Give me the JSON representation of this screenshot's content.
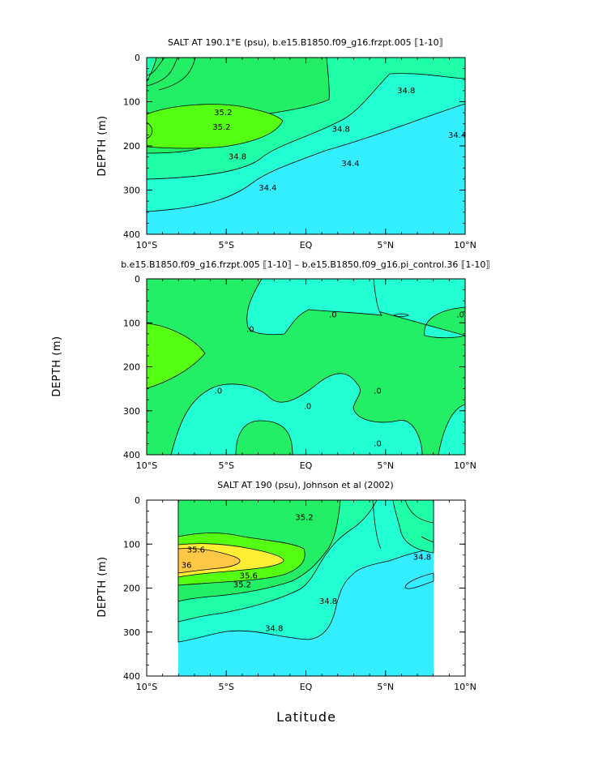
{
  "figure": {
    "xlabel": "Latitude"
  },
  "colors": {
    "cyan": "#33eeff",
    "aqua": "#22ffd2",
    "teal": "#1fffa8",
    "green": "#22ee66",
    "lime": "#55ff11",
    "yellow": "#ffee33",
    "orange": "#ffc844"
  },
  "chart_data": [
    {
      "type": "contour",
      "title": "SALT AT 190.1°E (psu), b.e15.B1850.f09_g16.frzpt.005 ⟦1-10⟧",
      "ylabel": "DEPTH (m)",
      "xlim": [
        -10,
        10
      ],
      "ylim": [
        400,
        0
      ],
      "x_ticks": [
        "10°S",
        "5°S",
        "EQ",
        "5°N",
        "10°N"
      ],
      "y_ticks": [
        "0",
        "100",
        "200",
        "300",
        "400"
      ],
      "contour_labels": [
        {
          "text": "35.2",
          "lat": -5.2,
          "depth": 125
        },
        {
          "text": "35.2",
          "lat": -5.3,
          "depth": 158
        },
        {
          "text": "34.8",
          "lat": -4.3,
          "depth": 225
        },
        {
          "text": "34.4",
          "lat": -2.4,
          "depth": 295
        },
        {
          "text": "34.8",
          "lat": 2.2,
          "depth": 162
        },
        {
          "text": "34.4",
          "lat": 2.8,
          "depth": 240
        },
        {
          "text": "34.8",
          "lat": 6.3,
          "depth": 75
        },
        {
          "text": "34.4",
          "lat": 9.5,
          "depth": 176
        }
      ]
    },
    {
      "type": "contour",
      "title": "b.e15.B1850.f09_g16.frzpt.005 ⟦1-10⟧ – b.e15.B1850.f09_g16.pi_control.36 ⟦1-10⟧",
      "ylabel": "DEPTH (m)",
      "xlim": [
        -10,
        10
      ],
      "ylim": [
        400,
        0
      ],
      "x_ticks": [
        "10°S",
        "5°S",
        "EQ",
        "5°N",
        "10°N"
      ],
      "y_ticks": [
        "0",
        "100",
        "200",
        "300",
        "400"
      ],
      "contour_labels": [
        {
          "text": ".0",
          "lat": -3.5,
          "depth": 115
        },
        {
          "text": ".0",
          "lat": 1.7,
          "depth": 82
        },
        {
          "text": ".0",
          "lat": 9.7,
          "depth": 82
        },
        {
          "text": ".0",
          "lat": -5.5,
          "depth": 255
        },
        {
          "text": ".0",
          "lat": 0.1,
          "depth": 290
        },
        {
          "text": ".0",
          "lat": 4.5,
          "depth": 255
        },
        {
          "text": ".0",
          "lat": 4.5,
          "depth": 375
        }
      ]
    },
    {
      "type": "contour",
      "title": "SALT AT 190 (psu), Johnson et al (2002)",
      "ylabel": "DEPTH (m)",
      "xlim": [
        -10,
        10
      ],
      "ylim": [
        400,
        0
      ],
      "x_ticks": [
        "10°S",
        "5°S",
        "EQ",
        "5°N",
        "10°N"
      ],
      "y_ticks": [
        "0",
        "100",
        "200",
        "300",
        "400"
      ],
      "data_lat_range": [
        -8,
        8
      ],
      "contour_labels": [
        {
          "text": "35.2",
          "lat": -0.1,
          "depth": 40
        },
        {
          "text": "35.6",
          "lat": -6.9,
          "depth": 113
        },
        {
          "text": "36",
          "lat": -7.5,
          "depth": 148
        },
        {
          "text": "35.6",
          "lat": -3.6,
          "depth": 172
        },
        {
          "text": "35.2",
          "lat": -4.0,
          "depth": 193
        },
        {
          "text": "34.8",
          "lat": 1.4,
          "depth": 230
        },
        {
          "text": "34.8",
          "lat": -2.0,
          "depth": 292
        },
        {
          "text": "34.8",
          "lat": 7.3,
          "depth": 130
        }
      ]
    }
  ]
}
